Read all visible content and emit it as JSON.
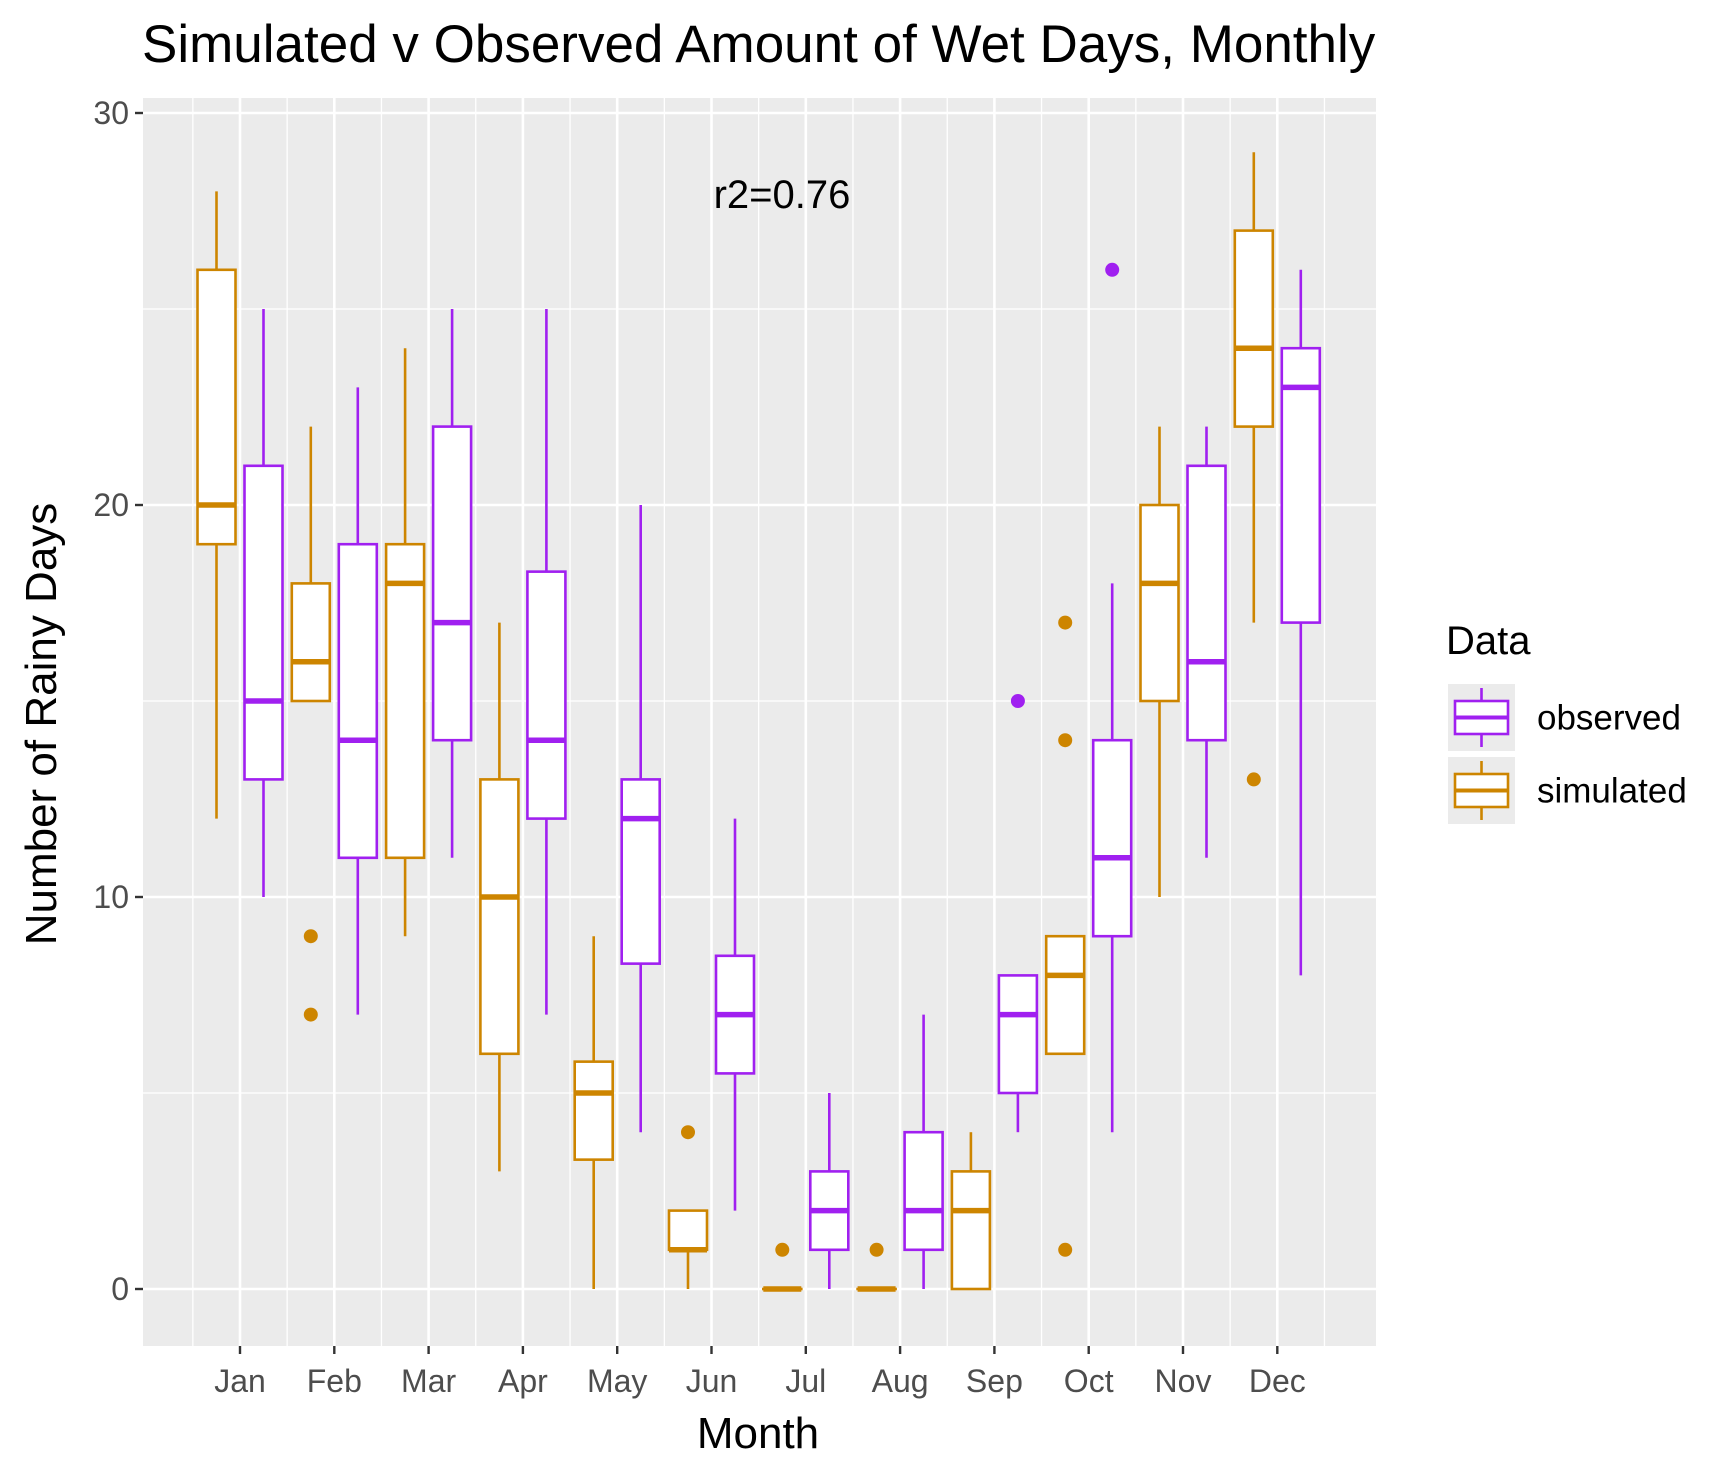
{
  "chart_data": {
    "type": "boxplot",
    "title": "Simulated v Observed Amount of Wet Days, Monthly",
    "xlabel": "Month",
    "ylabel": "Number of Rainy Days",
    "ylim": [
      -1.4,
      30.4
    ],
    "yticks": [
      0,
      10,
      20,
      30
    ],
    "grid": true,
    "annotation": "r2=0.76",
    "legend": {
      "title": "Data",
      "placement": "right",
      "entries": [
        "observed",
        "simulated"
      ]
    },
    "colors": {
      "observed": "#A020F0",
      "simulated": "#CD8500"
    },
    "categories": [
      "Jan",
      "Feb",
      "Mar",
      "Apr",
      "May",
      "Jun",
      "Jul",
      "Aug",
      "Sep",
      "Oct",
      "Nov",
      "Dec"
    ],
    "series": [
      {
        "name": "simulated",
        "boxes": [
          {
            "min": 12,
            "q1": 19,
            "median": 20,
            "q3": 26,
            "max": 28,
            "outliers": []
          },
          {
            "min": 15,
            "q1": 15,
            "median": 16,
            "q3": 18,
            "max": 22,
            "outliers": [
              9,
              7
            ]
          },
          {
            "min": 9,
            "q1": 11,
            "median": 18,
            "q3": 19,
            "max": 24,
            "outliers": []
          },
          {
            "min": 3,
            "q1": 6,
            "median": 10,
            "q3": 13,
            "max": 17,
            "outliers": []
          },
          {
            "min": 0,
            "q1": 3.3,
            "median": 5,
            "q3": 5.8,
            "max": 9,
            "outliers": []
          },
          {
            "min": 0,
            "q1": 1,
            "median": 1,
            "q3": 2,
            "max": 2,
            "outliers": [
              4
            ]
          },
          {
            "min": 0,
            "q1": 0,
            "median": 0,
            "q3": 0,
            "max": 0,
            "outliers": [
              1
            ]
          },
          {
            "min": 0,
            "q1": 0,
            "median": 0,
            "q3": 0,
            "max": 0,
            "outliers": [
              1
            ]
          },
          {
            "min": 0,
            "q1": 0,
            "median": 2,
            "q3": 3,
            "max": 4,
            "outliers": []
          },
          {
            "min": 6,
            "q1": 6,
            "median": 8,
            "q3": 9,
            "max": 9,
            "outliers": [
              17,
              14,
              1
            ]
          },
          {
            "min": 10,
            "q1": 15,
            "median": 18,
            "q3": 20,
            "max": 22,
            "outliers": []
          },
          {
            "min": 17,
            "q1": 22,
            "median": 24,
            "q3": 27,
            "max": 29,
            "outliers": [
              13
            ]
          }
        ]
      },
      {
        "name": "observed",
        "boxes": [
          {
            "min": 10,
            "q1": 13,
            "median": 15,
            "q3": 21,
            "max": 25,
            "outliers": []
          },
          {
            "min": 7,
            "q1": 11,
            "median": 14,
            "q3": 19,
            "max": 23,
            "outliers": []
          },
          {
            "min": 11,
            "q1": 14,
            "median": 17,
            "q3": 22,
            "max": 25,
            "outliers": []
          },
          {
            "min": 7,
            "q1": 12,
            "median": 14,
            "q3": 18.3,
            "max": 25,
            "outliers": []
          },
          {
            "min": 4,
            "q1": 8.3,
            "median": 12,
            "q3": 13,
            "max": 20,
            "outliers": []
          },
          {
            "min": 2,
            "q1": 5.5,
            "median": 7,
            "q3": 8.5,
            "max": 12,
            "outliers": []
          },
          {
            "min": 0,
            "q1": 1,
            "median": 2,
            "q3": 3,
            "max": 5,
            "outliers": []
          },
          {
            "min": 0,
            "q1": 1,
            "median": 2,
            "q3": 4,
            "max": 7,
            "outliers": []
          },
          {
            "min": 4,
            "q1": 5,
            "median": 7,
            "q3": 8,
            "max": 8,
            "outliers": [
              15
            ]
          },
          {
            "min": 4,
            "q1": 9,
            "median": 11,
            "q3": 14,
            "max": 18,
            "outliers": [
              26
            ]
          },
          {
            "min": 11,
            "q1": 14,
            "median": 16,
            "q3": 21,
            "max": 22,
            "outliers": []
          },
          {
            "min": 8,
            "q1": 17,
            "median": 23,
            "q3": 24,
            "max": 26,
            "outliers": []
          }
        ]
      }
    ]
  }
}
